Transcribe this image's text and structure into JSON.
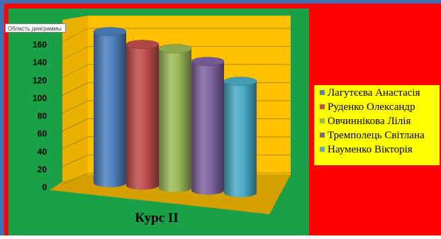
{
  "chart_area_tooltip": "Область диаграммы",
  "colors": {
    "background": "#ff0000",
    "plot_panel": "#1aa046",
    "walls": "#ffc000",
    "floor": "#d4a000",
    "legend_bg": "#ffff00",
    "window_frame": "#3f6fb5"
  },
  "chart_data": {
    "type": "bar",
    "style": "3d-cylinder",
    "title": "Курс II",
    "xlabel": "",
    "ylabel": "",
    "ylim": [
      0,
      180
    ],
    "yticks": [
      0,
      20,
      40,
      60,
      80,
      100,
      120,
      140,
      160
    ],
    "grid": true,
    "legend_position": "right",
    "series": [
      {
        "name": "Лагутєєва Анастасія",
        "value": 175,
        "color": "#4f81bd"
      },
      {
        "name": "Руденко Олександр",
        "value": 163,
        "color": "#c0504d"
      },
      {
        "name": "Овчиннікова Лілія",
        "value": 161,
        "color": "#9bbb59"
      },
      {
        "name": "Тремполець Світлана",
        "value": 149,
        "color": "#8064a2"
      },
      {
        "name": "Науменко Вікторія",
        "value": 129,
        "color": "#4bacc6"
      }
    ]
  }
}
